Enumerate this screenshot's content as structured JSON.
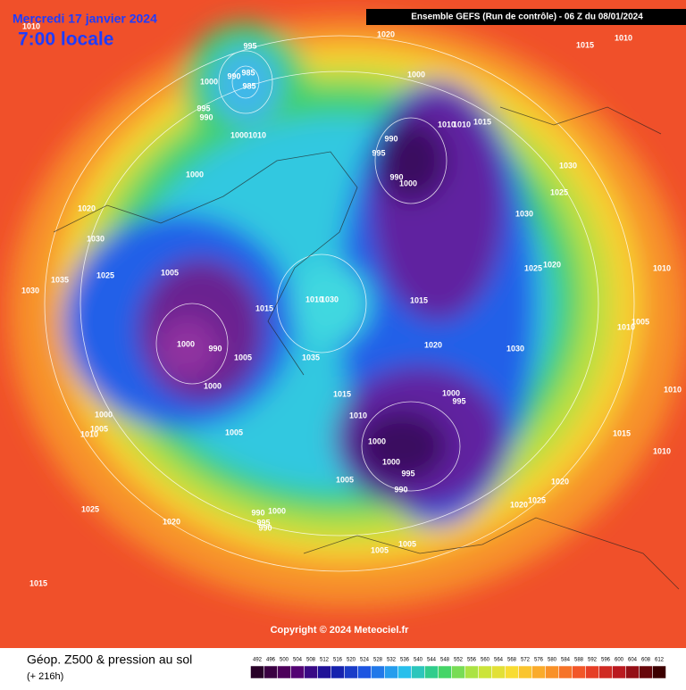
{
  "header": {
    "date": "Mercredi 17 janvier 2024",
    "time": "7:00 locale",
    "run": "Ensemble GEFS  (Run de contrôle)  -  06 Z du 08/01/2024"
  },
  "map": {
    "pressure_labels": [
      1010,
      995,
      985,
      990,
      985,
      1000,
      995,
      990,
      1020,
      1015,
      1010,
      1000,
      1000,
      1010,
      1010,
      1010,
      1015,
      990,
      995,
      990,
      1000,
      1030,
      1025,
      1000,
      1020,
      1030,
      1030,
      1025,
      1020,
      1010,
      1035,
      1025,
      1005,
      1030,
      1015,
      1010,
      1030,
      1015,
      1005,
      1010,
      1000,
      990,
      1020,
      1030,
      1005,
      1035,
      1000,
      1010,
      1015,
      1000,
      995,
      1010,
      1000,
      1005,
      1010,
      1005,
      1015,
      1000,
      1010,
      1000,
      995,
      1005,
      990,
      1020,
      1025,
      1020,
      1025,
      1000,
      990,
      995,
      990,
      1020,
      1005,
      1005,
      1015
    ]
  },
  "copyright": "Copyright © 2024 Meteociel.fr",
  "footer": {
    "title": "Géop. Z500 & pression au sol",
    "subtitle": "(+ 216h)"
  },
  "legend": {
    "labels": [
      492,
      496,
      500,
      504,
      508,
      512,
      516,
      520,
      524,
      528,
      532,
      536,
      540,
      544,
      548,
      552,
      556,
      560,
      564,
      568,
      572,
      576,
      580,
      584,
      588,
      592,
      596,
      600,
      604,
      608,
      612
    ]
  }
}
